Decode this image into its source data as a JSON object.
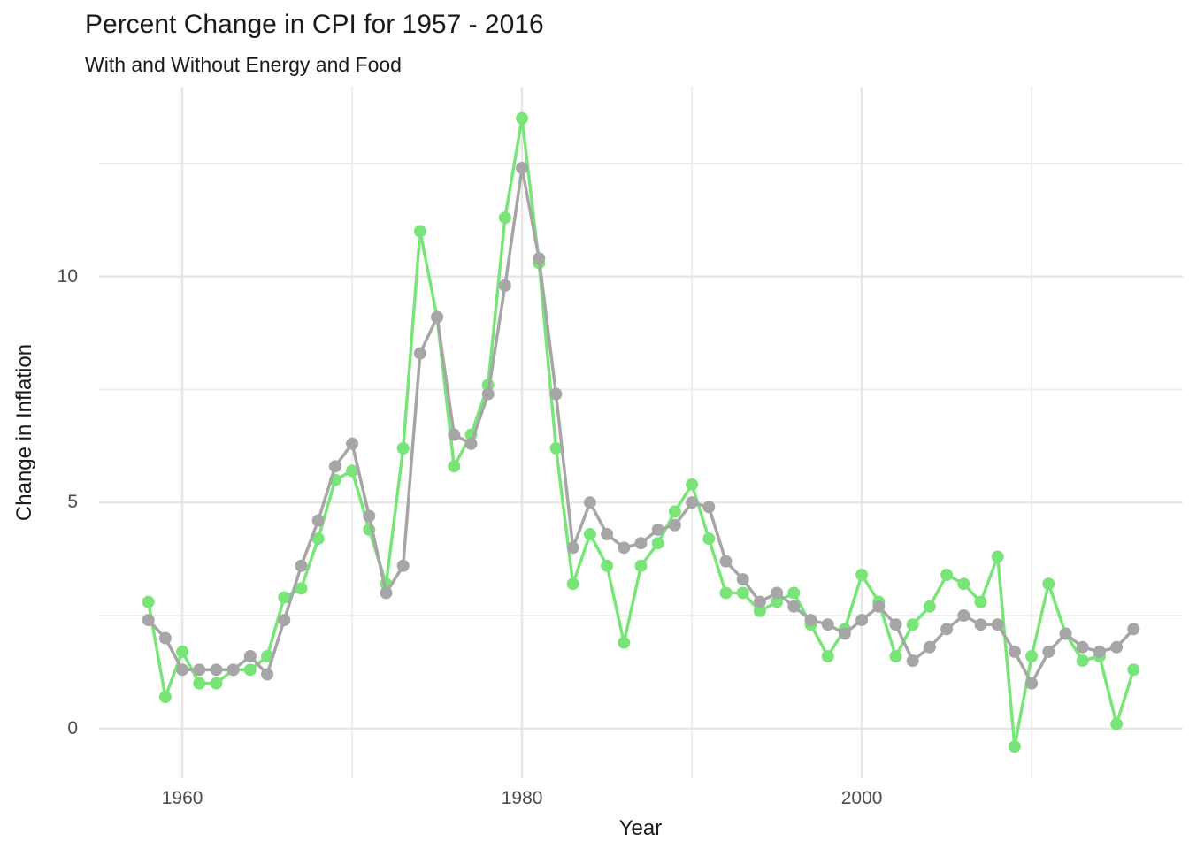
{
  "chart_data": {
    "type": "line",
    "title": "Percent Change in CPI for 1957 - 2016",
    "subtitle": "With and Without Energy and Food",
    "xlabel": "Year",
    "ylabel": "Change in Inflation",
    "xlim": [
      1955.1,
      2018.9
    ],
    "ylim": [
      -1.1,
      14.2
    ],
    "x_ticks_major": [
      1960,
      1980,
      2000
    ],
    "x_ticks_minor": [
      1970,
      1990,
      2010
    ],
    "y_ticks_major": [
      0,
      5,
      10
    ],
    "y_ticks_minor": [
      2.5,
      7.5,
      12.5
    ],
    "grid": "on",
    "legend": "none",
    "point_radius": 7,
    "line_width": 3.5,
    "x": [
      1958,
      1959,
      1960,
      1961,
      1962,
      1963,
      1964,
      1965,
      1966,
      1967,
      1968,
      1969,
      1970,
      1971,
      1972,
      1973,
      1974,
      1975,
      1976,
      1977,
      1978,
      1979,
      1980,
      1981,
      1982,
      1983,
      1984,
      1985,
      1986,
      1987,
      1988,
      1989,
      1990,
      1991,
      1992,
      1993,
      1994,
      1995,
      1996,
      1997,
      1998,
      1999,
      2000,
      2001,
      2002,
      2003,
      2004,
      2005,
      2006,
      2007,
      2008,
      2009,
      2010,
      2011,
      2012,
      2013,
      2014,
      2015,
      2016
    ],
    "series": [
      {
        "name": "green",
        "color": "#79E579",
        "values": [
          2.8,
          0.7,
          1.7,
          1.0,
          1.0,
          1.3,
          1.3,
          1.6,
          2.9,
          3.1,
          4.2,
          5.5,
          5.7,
          4.4,
          3.2,
          6.2,
          11.0,
          9.1,
          5.8,
          6.5,
          7.6,
          11.3,
          13.5,
          10.3,
          6.2,
          3.2,
          4.3,
          3.6,
          1.9,
          3.6,
          4.1,
          4.8,
          5.4,
          4.2,
          3.0,
          3.0,
          2.6,
          2.8,
          3.0,
          2.3,
          1.6,
          2.2,
          3.4,
          2.8,
          1.6,
          2.3,
          2.7,
          3.4,
          3.2,
          2.8,
          3.8,
          -0.4,
          1.6,
          3.2,
          2.1,
          1.5,
          1.6,
          0.1,
          1.3
        ]
      },
      {
        "name": "gray",
        "color": "#A6A6A6",
        "values": [
          2.4,
          2.0,
          1.3,
          1.3,
          1.3,
          1.3,
          1.6,
          1.2,
          2.4,
          3.6,
          4.6,
          5.8,
          6.3,
          4.7,
          3.0,
          3.6,
          8.3,
          9.1,
          6.5,
          6.3,
          7.4,
          9.8,
          12.4,
          10.4,
          7.4,
          4.0,
          5.0,
          4.3,
          4.0,
          4.1,
          4.4,
          4.5,
          5.0,
          4.9,
          3.7,
          3.3,
          2.8,
          3.0,
          2.7,
          2.4,
          2.3,
          2.1,
          2.4,
          2.7,
          2.3,
          1.5,
          1.8,
          2.2,
          2.5,
          2.3,
          2.3,
          1.7,
          1.0,
          1.7,
          2.1,
          1.8,
          1.7,
          1.8,
          2.2
        ]
      }
    ],
    "colors": {
      "background": "#FFFFFF",
      "grid_major": "#E6E6E6",
      "grid_minor": "#ECECEC",
      "tick_text": "#4D4D4D",
      "title_text": "#1A1A1A"
    }
  }
}
